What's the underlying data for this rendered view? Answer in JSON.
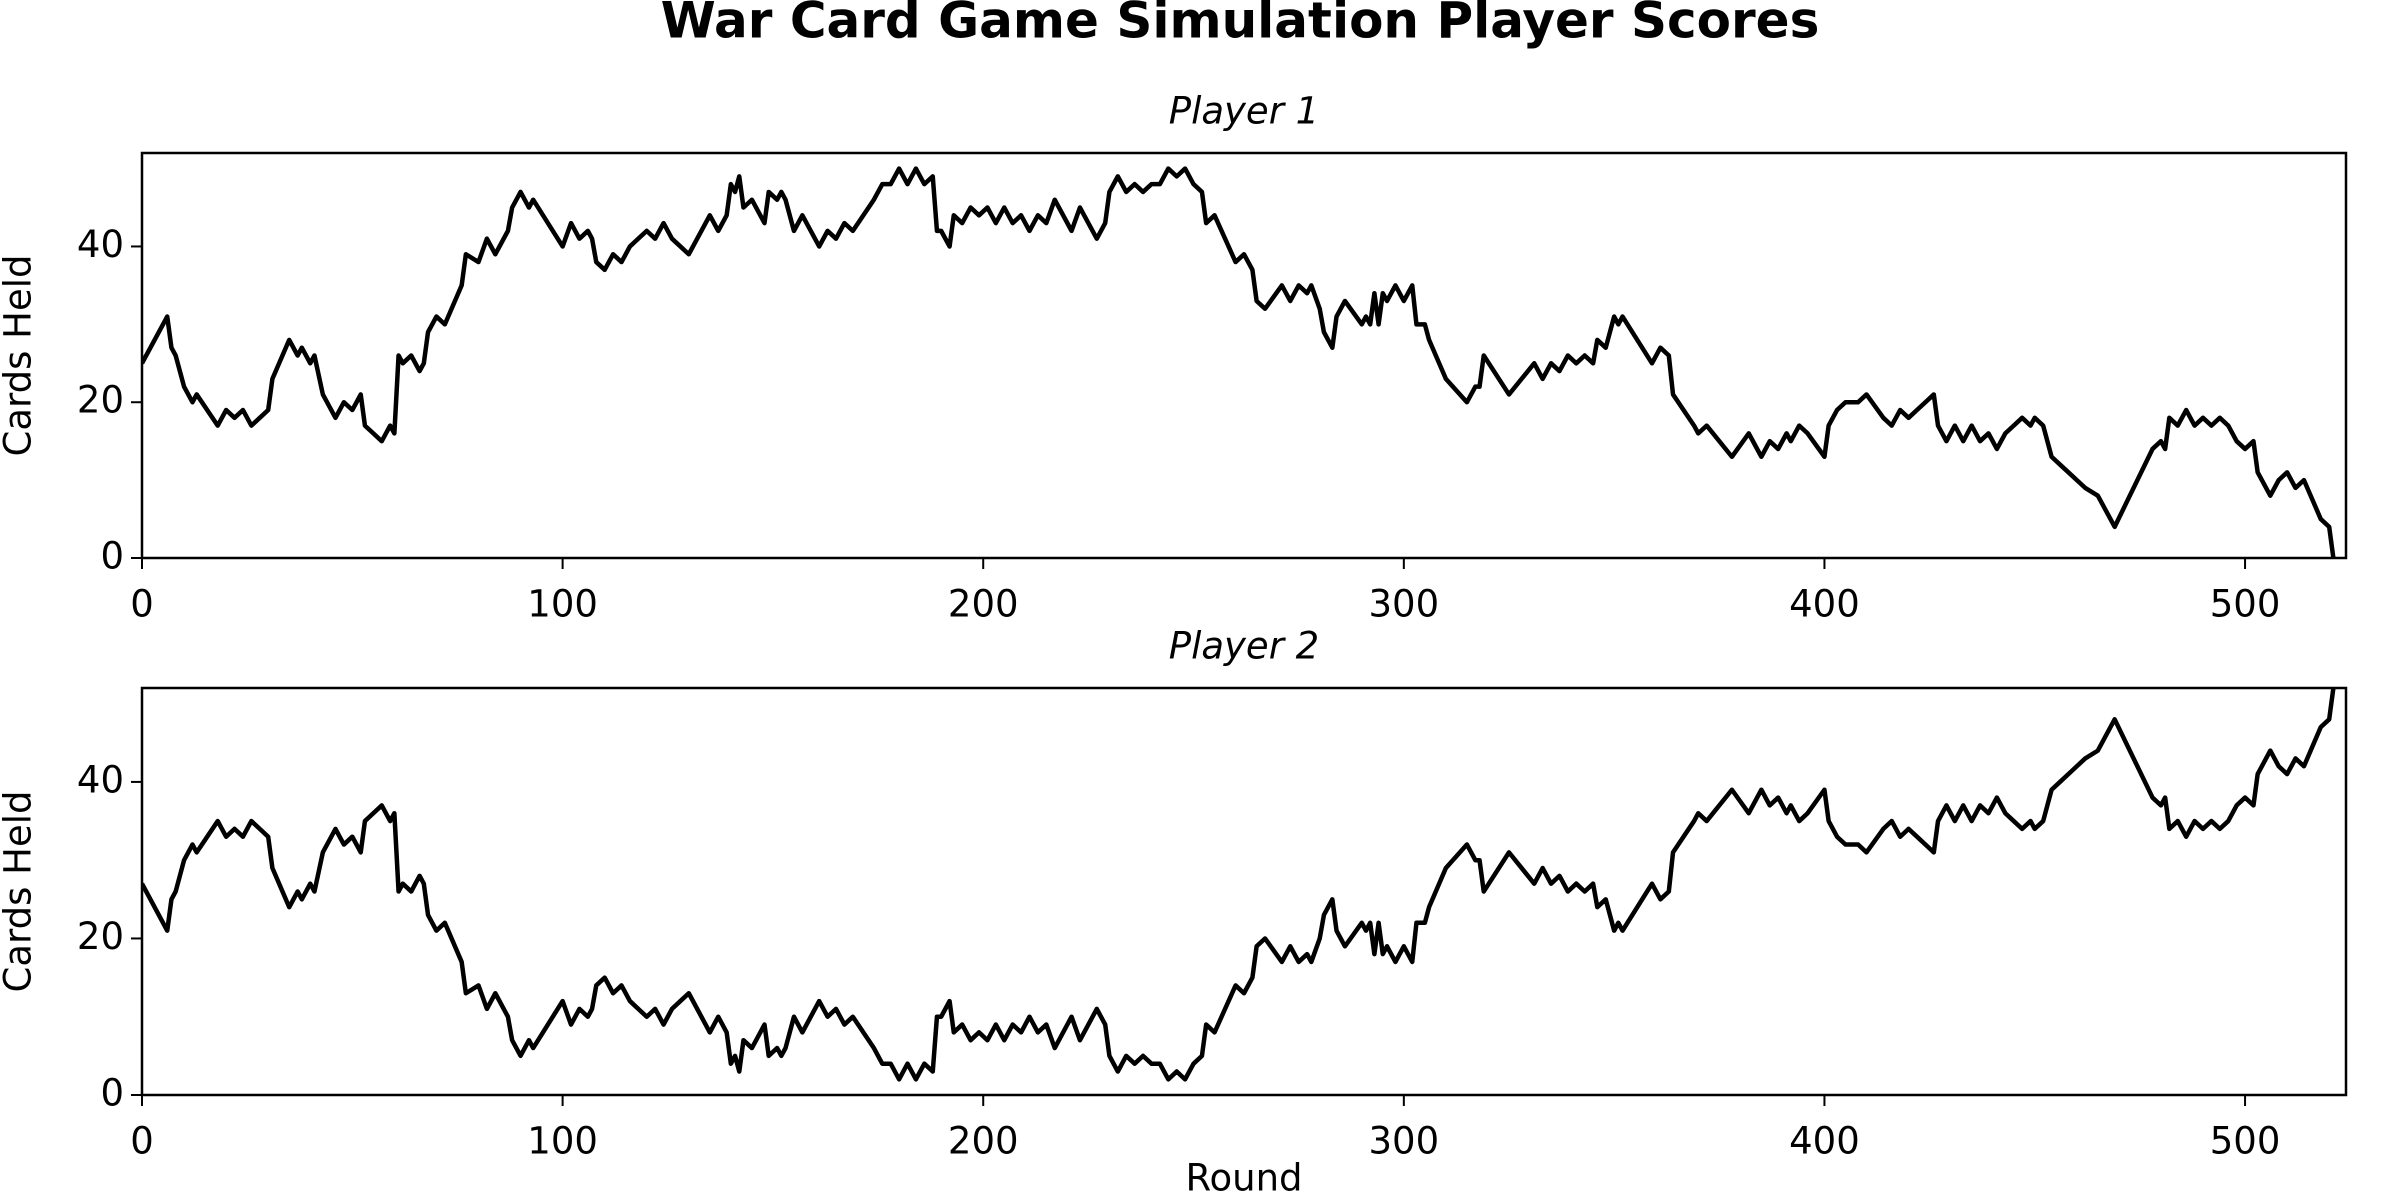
{
  "title": "War Card Game Simulation Player Scores",
  "chart_data": [
    {
      "type": "line",
      "title": "Player 1",
      "ylabel": "Cards Held",
      "x": [
        0,
        6,
        7,
        8,
        10,
        12,
        13,
        18,
        20,
        22,
        24,
        26,
        28,
        30,
        31,
        35,
        37,
        38,
        40,
        41,
        43,
        46,
        48,
        50,
        52,
        53,
        55,
        57,
        59,
        60,
        61,
        62,
        64,
        66,
        67,
        68,
        70,
        72,
        76,
        77,
        80,
        82,
        84,
        87,
        88,
        90,
        92,
        93,
        100,
        102,
        104,
        106,
        107,
        108,
        110,
        112,
        114,
        116,
        120,
        122,
        124,
        126,
        128,
        130,
        135,
        137,
        139,
        140,
        141,
        142,
        143,
        145,
        147,
        148,
        149,
        151,
        152,
        153,
        155,
        157,
        161,
        163,
        165,
        167,
        169,
        174,
        176,
        178,
        180,
        182,
        184,
        186,
        188,
        189,
        190,
        192,
        193,
        195,
        197,
        199,
        201,
        203,
        205,
        207,
        209,
        211,
        213,
        215,
        217,
        221,
        223,
        227,
        229,
        230,
        232,
        234,
        236,
        238,
        240,
        242,
        244,
        246,
        248,
        250,
        252,
        253,
        255,
        260,
        262,
        264,
        265,
        267,
        271,
        273,
        275,
        277,
        278,
        280,
        281,
        283,
        284,
        286,
        290,
        291,
        292,
        293,
        294,
        295,
        296,
        298,
        300,
        302,
        303,
        305,
        306,
        310,
        315,
        317,
        318,
        319,
        325,
        331,
        333,
        335,
        337,
        339,
        341,
        343,
        345,
        346,
        348,
        350,
        351,
        352,
        359,
        361,
        363,
        364,
        369,
        370,
        372,
        378,
        382,
        385,
        387,
        389,
        391,
        392,
        394,
        396,
        400,
        401,
        403,
        405,
        408,
        410,
        414,
        416,
        418,
        420,
        422,
        424,
        426,
        427,
        429,
        431,
        433,
        435,
        437,
        439,
        441,
        443,
        445,
        447,
        449,
        450,
        452,
        454,
        456,
        458,
        460,
        462,
        465,
        469,
        478,
        480,
        481,
        482,
        484,
        486,
        488,
        490,
        492,
        494,
        496,
        498,
        500,
        502,
        503,
        506,
        508,
        510,
        512,
        514,
        518,
        520,
        521
      ],
      "series": [
        {
          "name": "Player 1",
          "color": "#000000",
          "values": [
            25,
            31,
            27,
            26,
            22,
            20,
            21,
            17,
            19,
            18,
            19,
            17,
            18,
            19,
            23,
            28,
            26,
            27,
            25,
            26,
            21,
            18,
            20,
            19,
            21,
            17,
            16,
            15,
            17,
            16,
            26,
            25,
            26,
            24,
            25,
            29,
            31,
            30,
            35,
            39,
            38,
            41,
            39,
            42,
            45,
            47,
            45,
            46,
            40,
            43,
            41,
            42,
            41,
            38,
            37,
            39,
            38,
            40,
            42,
            41,
            43,
            41,
            40,
            39,
            44,
            42,
            44,
            48,
            47,
            49,
            45,
            46,
            44,
            43,
            47,
            46,
            47,
            46,
            42,
            44,
            40,
            42,
            41,
            43,
            42,
            46,
            48,
            48,
            50,
            48,
            50,
            48,
            49,
            42,
            42,
            40,
            44,
            43,
            45,
            44,
            45,
            43,
            45,
            43,
            44,
            42,
            44,
            43,
            46,
            42,
            45,
            41,
            43,
            47,
            49,
            47,
            48,
            47,
            48,
            48,
            50,
            49,
            50,
            48,
            47,
            43,
            44,
            38,
            39,
            37,
            33,
            32,
            35,
            33,
            35,
            34,
            35,
            32,
            29,
            27,
            31,
            33,
            30,
            31,
            30,
            34,
            30,
            34,
            33,
            35,
            33,
            35,
            30,
            30,
            28,
            23,
            20,
            22,
            22,
            26,
            21,
            25,
            23,
            25,
            24,
            26,
            25,
            26,
            25,
            28,
            27,
            31,
            30,
            31,
            25,
            27,
            26,
            21,
            17,
            16,
            17,
            13,
            16,
            13,
            15,
            14,
            16,
            15,
            17,
            16,
            13,
            17,
            19,
            20,
            20,
            21,
            18,
            17,
            19,
            18,
            19,
            20,
            21,
            17,
            15,
            17,
            15,
            17,
            15,
            16,
            14,
            16,
            17,
            18,
            17,
            18,
            17,
            13,
            12,
            11,
            10,
            9,
            8,
            4,
            14,
            15,
            14,
            18,
            17,
            19,
            17,
            18,
            17,
            18,
            17,
            15,
            14,
            15,
            11,
            8,
            10,
            11,
            9,
            10,
            5,
            4,
            0
          ]
        }
      ],
      "xlim": [
        0,
        524
      ],
      "xticks": [
        0,
        100,
        200,
        300,
        400,
        500
      ],
      "ylim": [
        0,
        52
      ],
      "yticks": [
        0,
        20,
        40
      ]
    },
    {
      "type": "line",
      "title": "Player 2",
      "ylabel": "Cards Held",
      "xlabel": "Round",
      "x": [
        0,
        6,
        7,
        8,
        10,
        12,
        13,
        18,
        20,
        22,
        24,
        26,
        28,
        30,
        31,
        35,
        37,
        38,
        40,
        41,
        43,
        46,
        48,
        50,
        52,
        53,
        55,
        57,
        59,
        60,
        61,
        62,
        64,
        66,
        67,
        68,
        70,
        72,
        76,
        77,
        80,
        82,
        84,
        87,
        88,
        90,
        92,
        93,
        100,
        102,
        104,
        106,
        107,
        108,
        110,
        112,
        114,
        116,
        120,
        122,
        124,
        126,
        128,
        130,
        135,
        137,
        139,
        140,
        141,
        142,
        143,
        145,
        147,
        148,
        149,
        151,
        152,
        153,
        155,
        157,
        161,
        163,
        165,
        167,
        169,
        174,
        176,
        178,
        180,
        182,
        184,
        186,
        188,
        189,
        190,
        192,
        193,
        195,
        197,
        199,
        201,
        203,
        205,
        207,
        209,
        211,
        213,
        215,
        217,
        221,
        223,
        227,
        229,
        230,
        232,
        234,
        236,
        238,
        240,
        242,
        244,
        246,
        248,
        250,
        252,
        253,
        255,
        260,
        262,
        264,
        265,
        267,
        271,
        273,
        275,
        277,
        278,
        280,
        281,
        283,
        284,
        286,
        290,
        291,
        292,
        293,
        294,
        295,
        296,
        298,
        300,
        302,
        303,
        305,
        306,
        310,
        315,
        317,
        318,
        319,
        325,
        331,
        333,
        335,
        337,
        339,
        341,
        343,
        345,
        346,
        348,
        350,
        351,
        352,
        359,
        361,
        363,
        364,
        369,
        370,
        372,
        378,
        382,
        385,
        387,
        389,
        391,
        392,
        394,
        396,
        400,
        401,
        403,
        405,
        408,
        410,
        414,
        416,
        418,
        420,
        422,
        424,
        426,
        427,
        429,
        431,
        433,
        435,
        437,
        439,
        441,
        443,
        445,
        447,
        449,
        450,
        452,
        454,
        456,
        458,
        460,
        462,
        465,
        469,
        478,
        480,
        481,
        482,
        484,
        486,
        488,
        490,
        492,
        494,
        496,
        498,
        500,
        502,
        503,
        506,
        508,
        510,
        512,
        514,
        518,
        520,
        521
      ],
      "series": [
        {
          "name": "Player 2",
          "color": "#000000",
          "values": [
            27,
            21,
            25,
            26,
            30,
            32,
            31,
            35,
            33,
            34,
            33,
            35,
            34,
            33,
            29,
            24,
            26,
            25,
            27,
            26,
            31,
            34,
            32,
            33,
            31,
            35,
            36,
            37,
            35,
            36,
            26,
            27,
            26,
            28,
            27,
            23,
            21,
            22,
            17,
            13,
            14,
            11,
            13,
            10,
            7,
            5,
            7,
            6,
            12,
            9,
            11,
            10,
            11,
            14,
            15,
            13,
            14,
            12,
            10,
            11,
            9,
            11,
            12,
            13,
            8,
            10,
            8,
            4,
            5,
            3,
            7,
            6,
            8,
            9,
            5,
            6,
            5,
            6,
            10,
            8,
            12,
            10,
            11,
            9,
            10,
            6,
            4,
            4,
            2,
            4,
            2,
            4,
            3,
            10,
            10,
            12,
            8,
            9,
            7,
            8,
            7,
            9,
            7,
            9,
            8,
            10,
            8,
            9,
            6,
            10,
            7,
            11,
            9,
            5,
            3,
            5,
            4,
            5,
            4,
            4,
            2,
            3,
            2,
            4,
            5,
            9,
            8,
            14,
            13,
            15,
            19,
            20,
            17,
            19,
            17,
            18,
            17,
            20,
            23,
            25,
            21,
            19,
            22,
            21,
            22,
            18,
            22,
            18,
            19,
            17,
            19,
            17,
            22,
            22,
            24,
            29,
            32,
            30,
            30,
            26,
            31,
            27,
            29,
            27,
            28,
            26,
            27,
            26,
            27,
            24,
            25,
            21,
            22,
            21,
            27,
            25,
            26,
            31,
            35,
            36,
            35,
            39,
            36,
            39,
            37,
            38,
            36,
            37,
            35,
            36,
            39,
            35,
            33,
            32,
            32,
            31,
            34,
            35,
            33,
            34,
            33,
            32,
            31,
            35,
            37,
            35,
            37,
            35,
            37,
            36,
            38,
            36,
            35,
            34,
            35,
            34,
            35,
            39,
            40,
            41,
            42,
            43,
            44,
            48,
            38,
            37,
            38,
            34,
            35,
            33,
            35,
            34,
            35,
            34,
            35,
            37,
            38,
            37,
            41,
            44,
            42,
            41,
            43,
            42,
            47,
            48,
            52
          ]
        }
      ],
      "xlim": [
        0,
        524
      ],
      "xticks": [
        0,
        100,
        200,
        300,
        400,
        500
      ],
      "ylim": [
        0,
        52
      ],
      "yticks": [
        0,
        20,
        40
      ]
    }
  ]
}
